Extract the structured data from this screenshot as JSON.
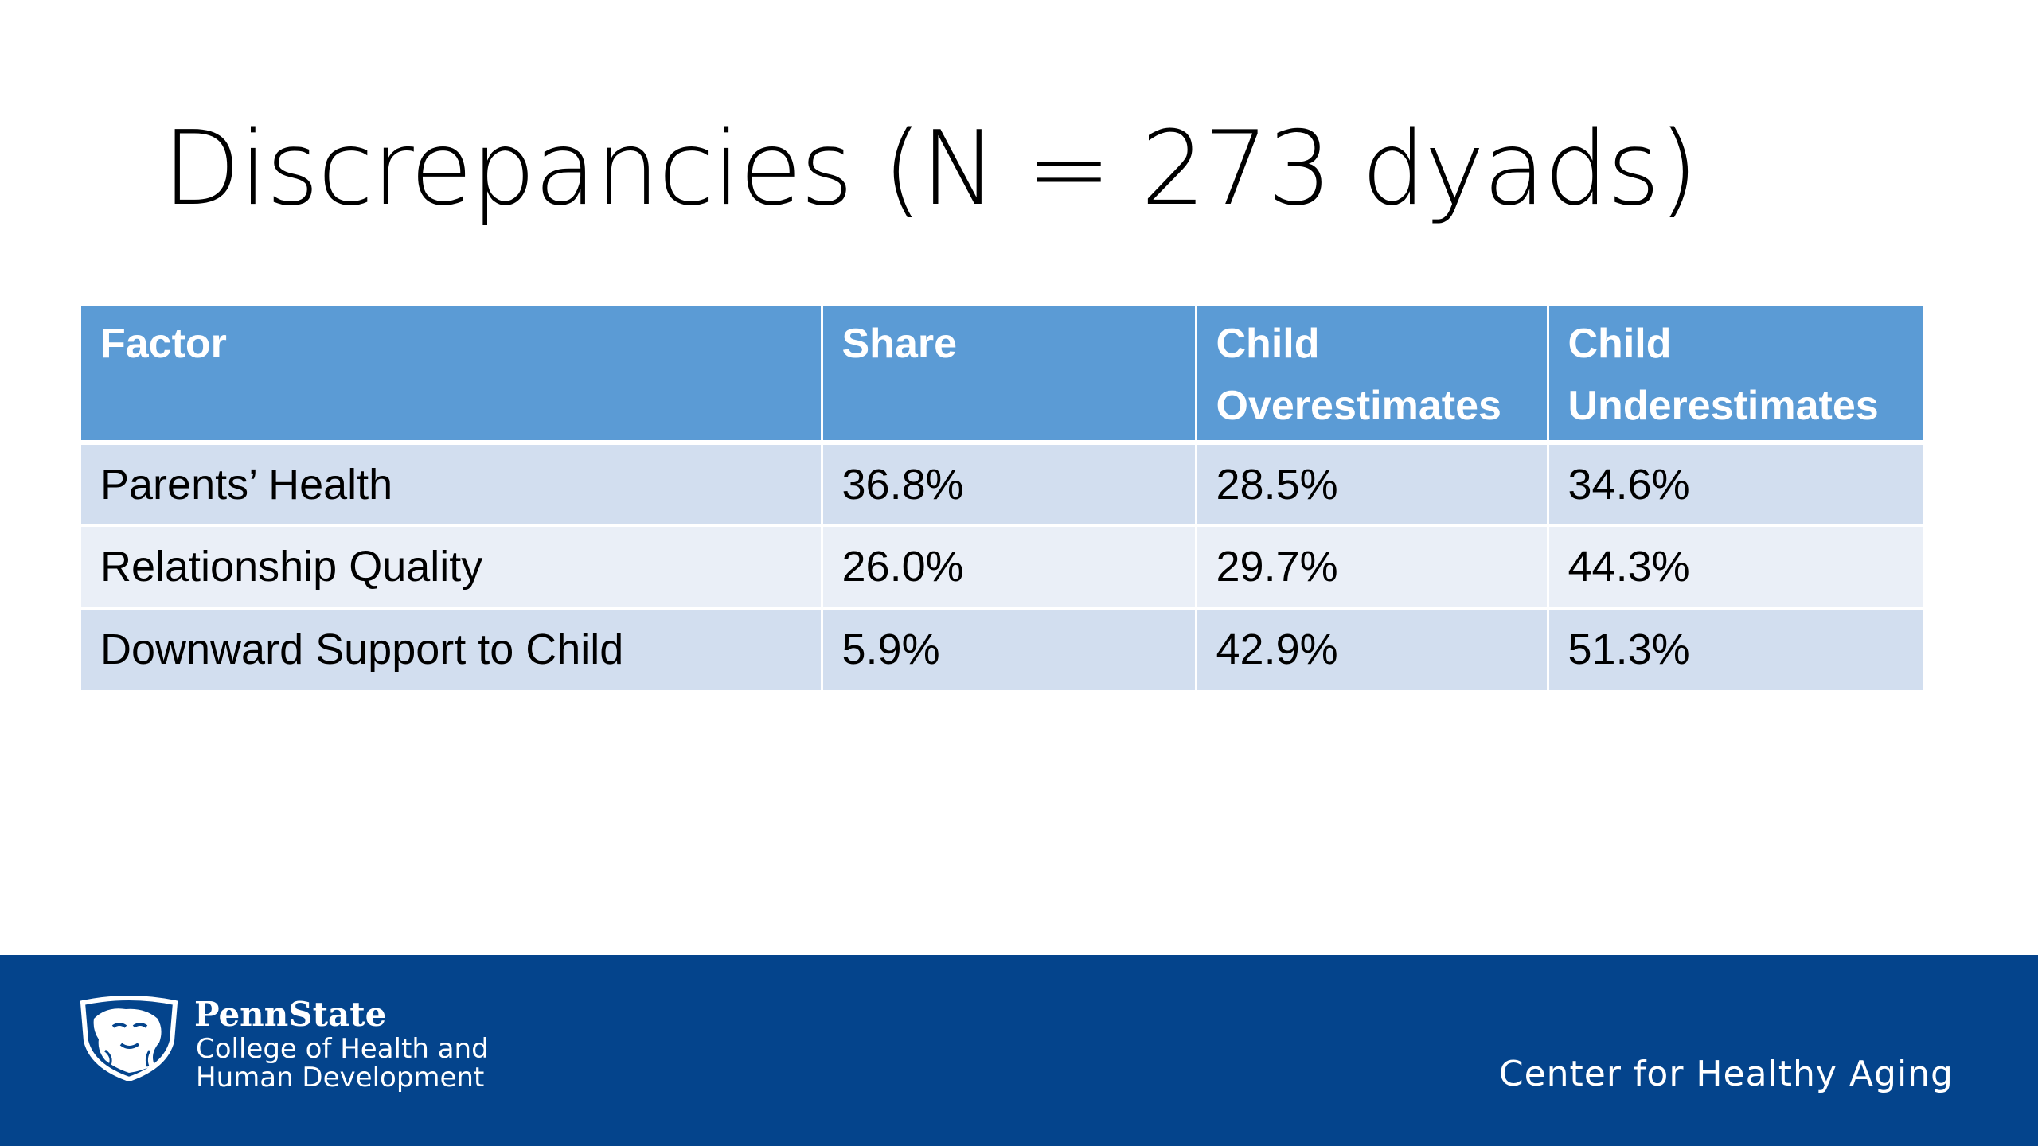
{
  "slide": {
    "title": "Discrepancies (N = 273 dyads)"
  },
  "table": {
    "headers": {
      "factor": "Factor",
      "share": "Share",
      "over_line1": "Child",
      "over_line2": "Overestimates",
      "under_line1": "Child",
      "under_line2": "Underestimates"
    },
    "rows": [
      {
        "factor": "Parents’ Health",
        "share": "36.8%",
        "over": "28.5%",
        "under": "34.6%"
      },
      {
        "factor": "Relationship Quality",
        "share": "26.0%",
        "over": "29.7%",
        "under": "44.3%"
      },
      {
        "factor": "Downward Support to Child",
        "share": "5.9%",
        "over": "42.9%",
        "under": "51.3%"
      }
    ]
  },
  "footer": {
    "brand_name": "PennState",
    "college_line1": "College of Health and",
    "college_line2": "Human Development",
    "center_name": "Center for Healthy Aging",
    "logo_icon": "nittany-lion-shield-icon"
  },
  "colors": {
    "header_fill": "#5b9bd5",
    "row_odd": "#d2deef",
    "row_even": "#eaeff7",
    "footer_bg": "#04448c"
  }
}
